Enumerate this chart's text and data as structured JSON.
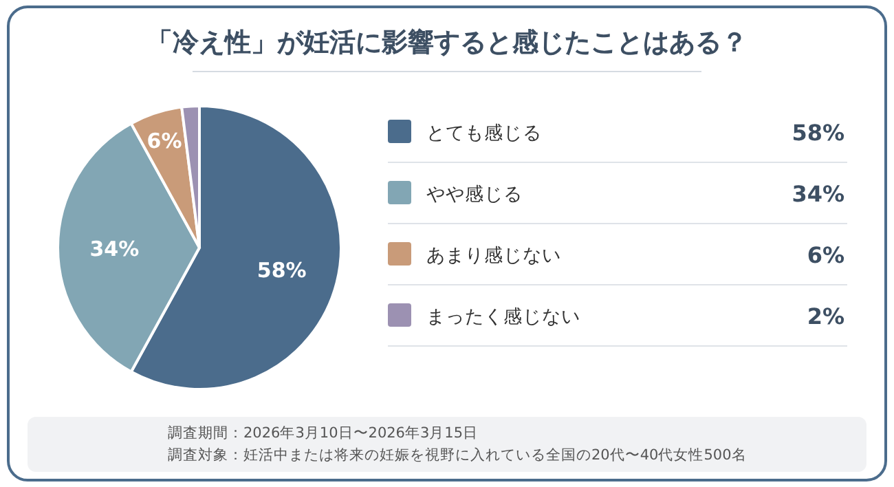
{
  "chart_data": {
    "type": "pie",
    "title": "「冷え性」が妊活に影響すると感じたことはある？",
    "categories": [
      "とても感じる",
      "やや感じる",
      "あまり感じない",
      "まったく感じない"
    ],
    "values": [
      58,
      34,
      6,
      2
    ],
    "colors": [
      "#4b6c8c",
      "#82a6b4",
      "#c99b79",
      "#9c91b2"
    ],
    "value_labels": [
      "58%",
      "34%",
      "6%",
      "2%"
    ],
    "legend": "right",
    "annotations": [
      "調査期間：2026年3月10日〜2026年3月15日",
      "調査対象：妊活中または将来の妊娠を視野に入れている全国の20代〜40代女性500名"
    ]
  }
}
